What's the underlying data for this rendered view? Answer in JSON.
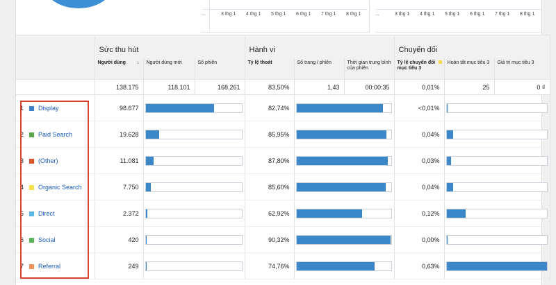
{
  "tick_labels": [
    "...",
    "3 thg 1",
    "4 thg 1",
    "5 thg 1",
    "6 thg 1",
    "7 thg 1",
    "8 thg 1"
  ],
  "groups": {
    "acquisition": "Sức thu hút",
    "behavior": "Hành vi",
    "conversions": "Chuyển đổi"
  },
  "columns": {
    "users": "Người dùng",
    "new_users": "Người dùng mới",
    "sessions": "Số phiên",
    "bounce_rate": "Tỷ lệ thoát",
    "pages_per_session": "Số trang / phiên",
    "avg_duration": "Thời gian trung bình của phiên",
    "conv_rate": "Tỷ lệ chuyển đổi mục tiêu 3",
    "completions": "Hoàn tất mục tiêu 3",
    "goal_value": "Giá trị mục tiêu 3",
    "sort_indicator": "↓"
  },
  "totals": {
    "users": "138.175",
    "new_users": "118.101",
    "sessions": "168.261",
    "bounce_rate": "83,50%",
    "pages_per_session": "1,43",
    "avg_duration": "00:00:35",
    "conv_rate": "0,01%",
    "completions": "25",
    "goal_value": "0 ₫"
  },
  "rows": [
    {
      "rank": "1",
      "channel": "Display",
      "color": "#3d7fc9",
      "users": "98.677",
      "users_share": 0.7141,
      "bounce": "82,74%",
      "bounce_fill": 0.9137,
      "conv": "<0,01%",
      "conv_fill": 0.01
    },
    {
      "rank": "2",
      "channel": "Paid Search",
      "color": "#5aa84a",
      "users": "19.628",
      "users_share": 0.1421,
      "bounce": "85,95%",
      "bounce_fill": 0.9491,
      "conv": "0,04%",
      "conv_fill": 0.0635
    },
    {
      "rank": "3",
      "channel": "(Other)",
      "color": "#d9532c",
      "users": "11.081",
      "users_share": 0.0802,
      "bounce": "87,80%",
      "bounce_fill": 0.9696,
      "conv": "0,03%",
      "conv_fill": 0.0476
    },
    {
      "rank": "4",
      "channel": "Organic Search",
      "color": "#f5e14a",
      "users": "7.750",
      "users_share": 0.0561,
      "bounce": "85,60%",
      "bounce_fill": 0.9453,
      "conv": "0,04%",
      "conv_fill": 0.0635
    },
    {
      "rank": "5",
      "channel": "Direct",
      "color": "#5ab8e8",
      "users": "2.372",
      "users_share": 0.0172,
      "bounce": "62,92%",
      "bounce_fill": 0.6948,
      "conv": "0,12%",
      "conv_fill": 0.1905
    },
    {
      "rank": "6",
      "channel": "Social",
      "color": "#59b459",
      "users": "420",
      "users_share": 0.003,
      "bounce": "90,32%",
      "bounce_fill": 0.9974,
      "conv": "0,00%",
      "conv_fill": 0.0
    },
    {
      "rank": "7",
      "channel": "Referral",
      "color": "#f0915a",
      "users": "249",
      "users_share": 0.0018,
      "bounce": "74,76%",
      "bounce_fill": 0.8256,
      "conv": "0,63%",
      "conv_fill": 1.0
    }
  ]
}
